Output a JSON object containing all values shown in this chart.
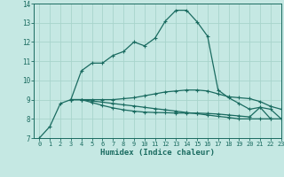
{
  "xlabel": "Humidex (Indice chaleur)",
  "xlim": [
    -0.5,
    23
  ],
  "ylim": [
    7,
    14
  ],
  "yticks": [
    7,
    8,
    9,
    10,
    11,
    12,
    13,
    14
  ],
  "xticks": [
    0,
    1,
    2,
    3,
    4,
    5,
    6,
    7,
    8,
    9,
    10,
    11,
    12,
    13,
    14,
    15,
    16,
    17,
    18,
    19,
    20,
    21,
    22,
    23
  ],
  "bg_color": "#c5e8e3",
  "grid_color": "#a8d4cc",
  "line_color": "#1a6b60",
  "lines": [
    {
      "x": [
        0,
        1,
        2,
        3,
        4,
        5,
        6,
        7,
        8,
        9,
        10,
        11,
        12,
        13,
        14,
        15,
        16,
        17,
        18,
        19,
        20,
        21,
        22
      ],
      "y": [
        7.0,
        7.6,
        8.8,
        9.0,
        10.5,
        10.9,
        10.9,
        11.3,
        11.5,
        12.0,
        11.8,
        12.2,
        13.1,
        13.65,
        13.65,
        13.05,
        12.3,
        9.5,
        9.1,
        8.8,
        8.5,
        8.6,
        8.0
      ]
    },
    {
      "x": [
        3,
        4,
        5,
        6,
        7,
        8,
        9,
        10,
        11,
        12,
        13,
        14,
        15,
        16,
        17,
        18,
        19,
        20,
        21,
        22,
        23
      ],
      "y": [
        9.0,
        9.0,
        9.0,
        9.0,
        9.0,
        9.05,
        9.1,
        9.2,
        9.3,
        9.4,
        9.45,
        9.5,
        9.5,
        9.45,
        9.3,
        9.15,
        9.1,
        9.05,
        8.9,
        8.65,
        8.5
      ]
    },
    {
      "x": [
        3,
        4,
        5,
        6,
        7,
        8,
        9,
        10,
        11,
        12,
        13,
        14,
        15,
        16,
        17,
        18,
        19,
        20,
        21,
        22,
        23
      ],
      "y": [
        9.0,
        9.0,
        8.93,
        8.87,
        8.8,
        8.73,
        8.67,
        8.6,
        8.53,
        8.47,
        8.4,
        8.33,
        8.27,
        8.2,
        8.13,
        8.07,
        8.0,
        8.0,
        8.0,
        8.0,
        8.0
      ]
    },
    {
      "x": [
        3,
        4,
        5,
        6,
        7,
        8,
        9,
        10,
        11,
        12,
        13,
        14,
        15,
        16,
        17,
        18,
        19,
        20,
        21,
        22,
        23
      ],
      "y": [
        9.0,
        9.0,
        8.85,
        8.7,
        8.57,
        8.47,
        8.4,
        8.35,
        8.33,
        8.32,
        8.3,
        8.3,
        8.3,
        8.28,
        8.25,
        8.2,
        8.15,
        8.1,
        8.6,
        8.5,
        8.0
      ]
    }
  ]
}
